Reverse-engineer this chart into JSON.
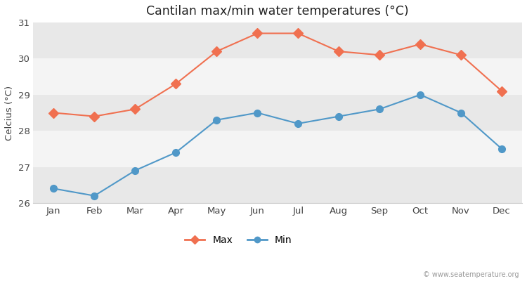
{
  "months": [
    "Jan",
    "Feb",
    "Mar",
    "Apr",
    "May",
    "Jun",
    "Jul",
    "Aug",
    "Sep",
    "Oct",
    "Nov",
    "Dec"
  ],
  "max_temps": [
    28.5,
    28.4,
    28.6,
    29.3,
    30.2,
    30.7,
    30.7,
    30.2,
    30.1,
    30.4,
    30.1,
    29.1
  ],
  "min_temps": [
    26.4,
    26.2,
    26.9,
    27.4,
    28.3,
    28.5,
    28.2,
    28.4,
    28.6,
    29.0,
    28.5,
    27.5
  ],
  "max_color": "#f07050",
  "min_color": "#5098c8",
  "title": "Cantilan max/min water temperatures (°C)",
  "ylabel": "Celcius (°C)",
  "ylim": [
    26.0,
    31.0
  ],
  "yticks": [
    26,
    27,
    28,
    29,
    30,
    31
  ],
  "bg_color": "#ffffff",
  "plot_bg_color": "#ffffff",
  "band_colors_dark": "#e8e8e8",
  "band_colors_light": "#f4f4f4",
  "watermark": "© www.seatemperature.org",
  "legend_max": "Max",
  "legend_min": "Min"
}
